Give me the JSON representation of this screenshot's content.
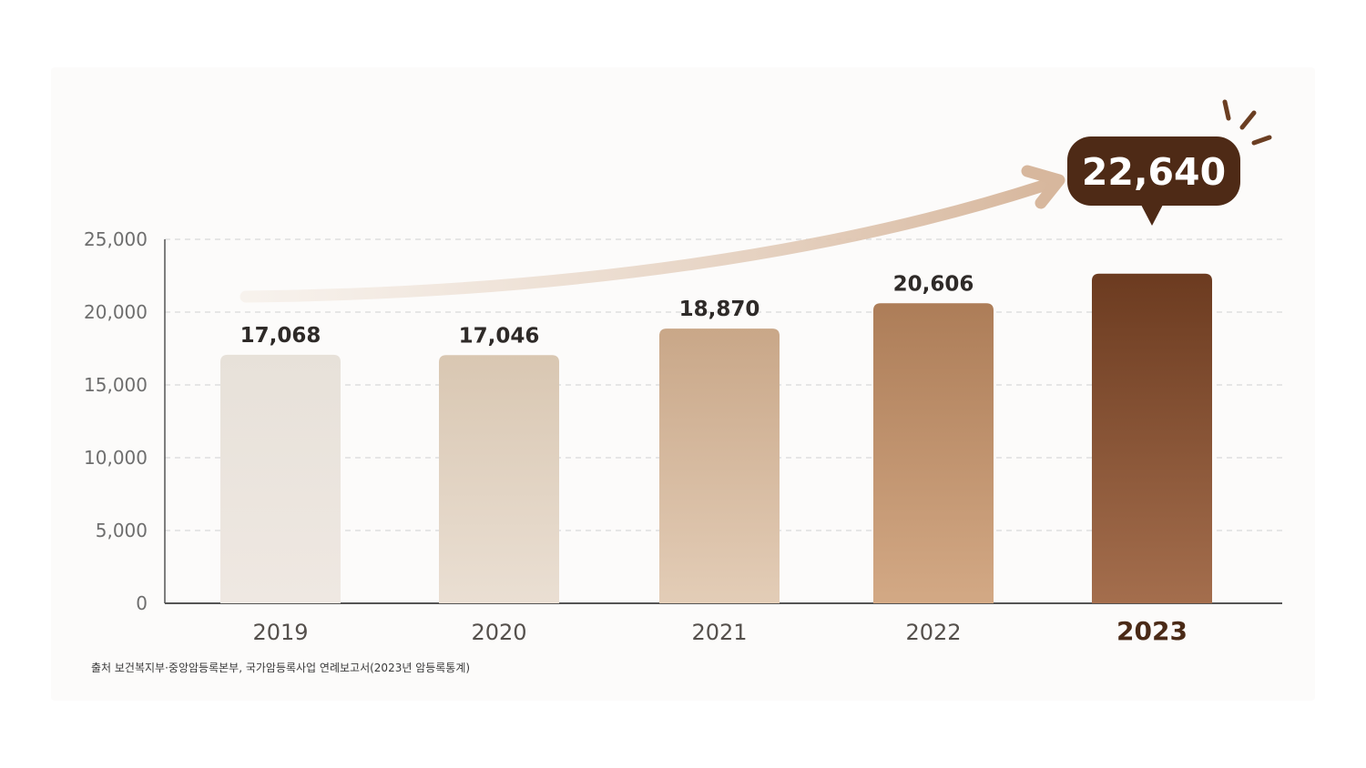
{
  "chart_data": {
    "type": "bar",
    "categories": [
      "2019",
      "2020",
      "2021",
      "2022",
      "2023"
    ],
    "values": [
      17068,
      17046,
      18870,
      20606,
      22640
    ],
    "value_labels": [
      "17,068",
      "17,046",
      "18,870",
      "20,606",
      "22,640"
    ],
    "y_ticks": [
      "0",
      "5,000",
      "10,000",
      "15,000",
      "20,000",
      "25,000"
    ],
    "ylim": [
      0,
      25000
    ],
    "grid": true,
    "highlight": {
      "category": "2023",
      "label": "22,640"
    },
    "colors": {
      "bars_top": [
        "#e7e1d9",
        "#d9c7b2",
        "#c9a788",
        "#ad7d58",
        "#6c3b20"
      ],
      "bars_bottom": [
        "#efe8e2",
        "#eadfd3",
        "#e3cdb7",
        "#d3a985",
        "#a46e4d"
      ],
      "bubble": "#4e2a16",
      "arrow_start": "#f4ece4",
      "arrow_end": "#d7b79d",
      "axis": "#555555",
      "grid": "#d9d9d9"
    }
  },
  "source": "출처 보건복지부·중앙암등록본부, 국가암등록사업 연례보고서(2023년 암등록통계)"
}
